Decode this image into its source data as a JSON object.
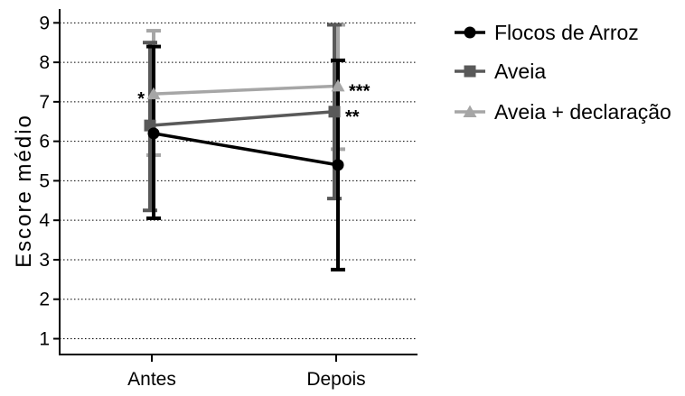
{
  "chart_data": {
    "type": "line",
    "title": "",
    "xlabel": "",
    "ylabel": "Escore médio",
    "categories": [
      "Antes",
      "Depois"
    ],
    "yticks": [
      1,
      2,
      3,
      4,
      5,
      6,
      7,
      8,
      9
    ],
    "ylim": [
      0.6,
      9.35
    ],
    "grid": "horizontal-dotted",
    "legend_position": "top-right",
    "series": [
      {
        "name": "Flocos de Arroz",
        "marker": "circle",
        "color": "#000000",
        "values": [
          6.2,
          5.4
        ],
        "error_low": [
          4.05,
          2.75
        ],
        "error_high": [
          8.4,
          8.05
        ],
        "annotations": [
          "",
          ""
        ]
      },
      {
        "name": "Aveia",
        "marker": "square",
        "color": "#595959",
        "values": [
          6.4,
          6.75
        ],
        "error_low": [
          4.25,
          4.55
        ],
        "error_high": [
          8.5,
          8.95
        ],
        "annotations": [
          "",
          "**"
        ]
      },
      {
        "name": "Aveia + declaração",
        "marker": "triangle",
        "color": "#a6a6a6",
        "values": [
          7.2,
          7.4
        ],
        "error_low": [
          5.65,
          5.8
        ],
        "error_high": [
          8.8,
          8.95
        ],
        "annotations": [
          "*",
          "***"
        ]
      }
    ]
  }
}
